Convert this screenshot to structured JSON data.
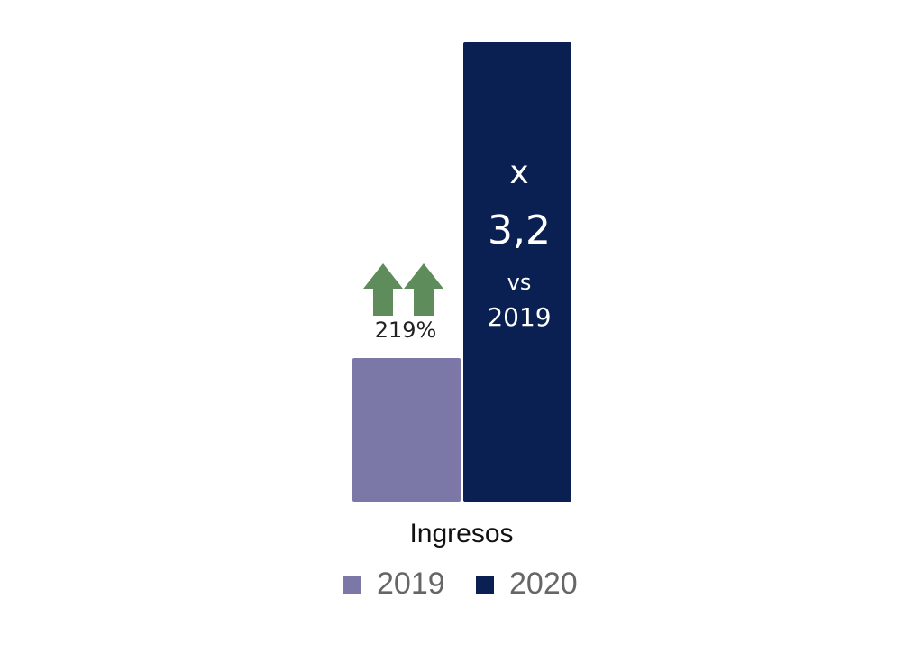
{
  "chart_data": {
    "type": "bar",
    "categories": [
      "Ingresos"
    ],
    "series": [
      {
        "name": "2019",
        "color": "#7b78a8",
        "values": [
          1
        ]
      },
      {
        "name": "2020",
        "color": "#0a1f52",
        "values": [
          3.2
        ]
      }
    ],
    "ylim": [
      0,
      3.2
    ],
    "annotations": [
      "x",
      "3,2",
      "vs",
      "2019",
      "219%"
    ],
    "legend": "bottom"
  }
}
